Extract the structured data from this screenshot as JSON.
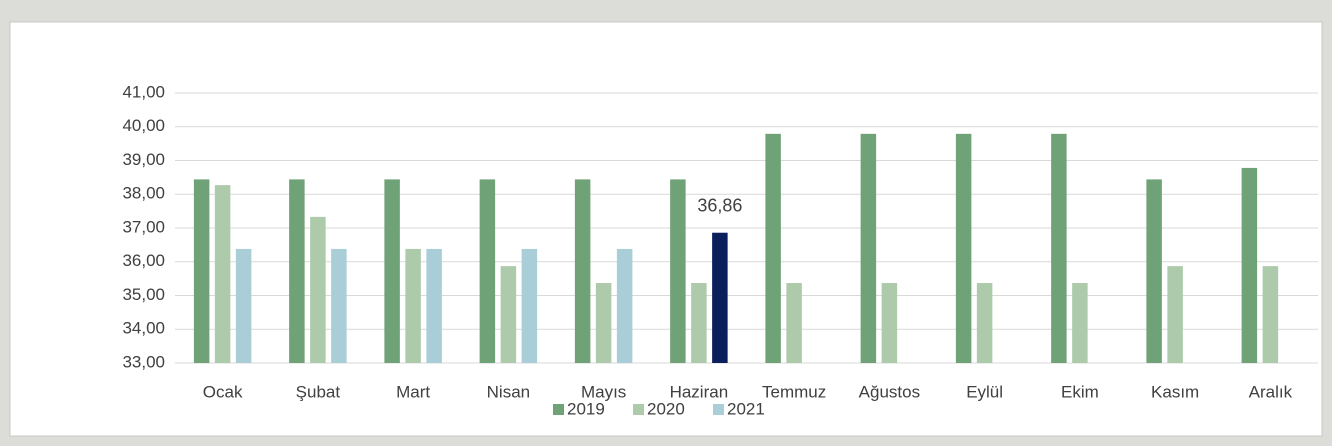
{
  "chart_data": {
    "type": "bar",
    "categories": [
      "Ocak",
      "Şubat",
      "Mart",
      "Nisan",
      "Mayıs",
      "Haziran",
      "Temmuz",
      "Ağustos",
      "Eylül",
      "Ekim",
      "Kasım",
      "Aralık"
    ],
    "series": [
      {
        "name": "2019",
        "color": "#70a278",
        "values": [
          38.44,
          38.44,
          38.44,
          38.44,
          38.44,
          38.44,
          39.79,
          39.79,
          39.79,
          39.79,
          38.44,
          38.78
        ]
      },
      {
        "name": "2020",
        "color": "#adcbaa",
        "values": [
          38.27,
          37.33,
          36.38,
          35.87,
          35.37,
          35.37,
          35.37,
          35.37,
          35.37,
          35.37,
          35.87,
          35.87
        ]
      },
      {
        "name": "2021",
        "color": "#a9ced8",
        "values": [
          36.38,
          36.38,
          36.38,
          36.38,
          36.38,
          36.86,
          null,
          null,
          null,
          null,
          null,
          null
        ],
        "value_labels": [
          null,
          null,
          null,
          null,
          null,
          "36,86",
          null,
          null,
          null,
          null,
          null,
          null
        ],
        "highlight": {
          "index": 5,
          "color": "#0b1f5c"
        }
      }
    ],
    "ylim": [
      33,
      41
    ],
    "yticks": [
      {
        "value": 33,
        "label": "33,00"
      },
      {
        "value": 34,
        "label": "34,00"
      },
      {
        "value": 35,
        "label": "35,00"
      },
      {
        "value": 36,
        "label": "36,00"
      },
      {
        "value": 37,
        "label": "37,00"
      },
      {
        "value": 38,
        "label": "38,00"
      },
      {
        "value": 39,
        "label": "39,00"
      },
      {
        "value": 40,
        "label": "40,00"
      },
      {
        "value": 41,
        "label": "41,00"
      }
    ],
    "grid": true,
    "legend": "bottom"
  }
}
